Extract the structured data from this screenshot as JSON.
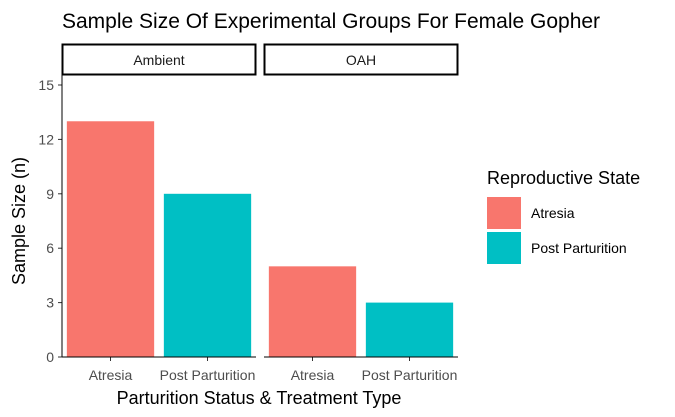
{
  "chart_data": {
    "type": "bar",
    "title": "Sample Size Of Experimental Groups For Female Gopher",
    "xlabel": "Parturition Status & Treatment Type",
    "ylabel": "Sample Size (n)",
    "ylim": [
      0,
      15
    ],
    "yticks": [
      "0",
      "3",
      "6",
      "9",
      "12",
      "15"
    ],
    "grid": false,
    "legend": {
      "title": "Reproductive State",
      "placement": "right",
      "entries": [
        {
          "label": "Atresia",
          "color": "#F8766D"
        },
        {
          "label": "Post Parturition",
          "color": "#00BFC4"
        }
      ]
    },
    "facets": [
      {
        "label": "Ambient",
        "categories": [
          "Atresia",
          "Post Parturition"
        ],
        "values": [
          13,
          9
        ]
      },
      {
        "label": "OAH",
        "categories": [
          "Atresia",
          "Post Parturition"
        ],
        "values": [
          5,
          3
        ]
      }
    ]
  }
}
